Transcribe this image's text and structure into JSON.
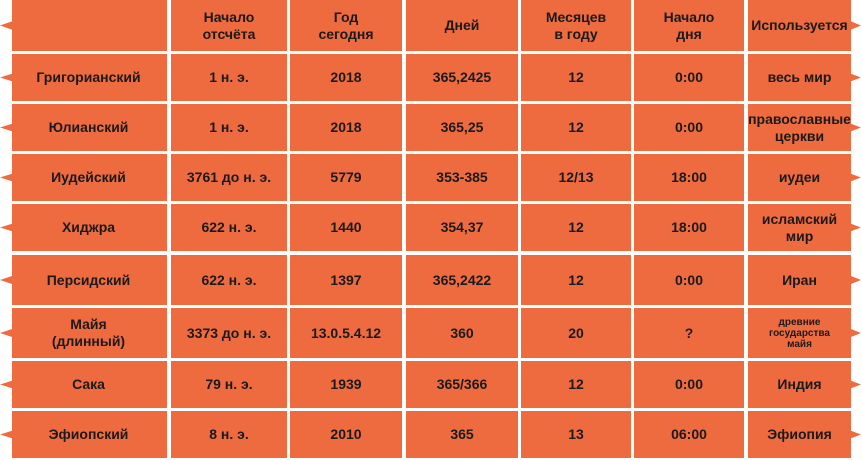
{
  "header": {
    "col0": "",
    "col1": "Начало\nотсчёта",
    "col2": "Год\nсегодня",
    "col3": "Дней",
    "col4": "Месяцев\nв году",
    "col5": "Начало\nдня",
    "col6": "Используется"
  },
  "rows": [
    {
      "name": "Григорианский",
      "start": "1 н. э.",
      "year": "2018",
      "days": "365,2425",
      "months": "12",
      "day_start": "0:00",
      "used": "весь мир"
    },
    {
      "name": "Юлианский",
      "start": "1 н. э.",
      "year": "2018",
      "days": "365,25",
      "months": "12",
      "day_start": "0:00",
      "used": "православные\nцеркви"
    },
    {
      "name": "Иудейский",
      "start": "3761 до н. э.",
      "year": "5779",
      "days": "353-385",
      "months": "12/13",
      "day_start": "18:00",
      "used": "иудеи"
    },
    {
      "name": "Хиджра",
      "start": "622 н. э.",
      "year": "1440",
      "days": "354,37",
      "months": "12",
      "day_start": "18:00",
      "used": "исламский\nмир"
    },
    {
      "name": "Персидский",
      "start": "622 н. э.",
      "year": "1397",
      "days": "365,2422",
      "months": "12",
      "day_start": "0:00",
      "used": "Иран"
    },
    {
      "name": "Майя\n(длинный)",
      "start": "3373 до н. э.",
      "year": "13.0.5.4.12",
      "days": "360",
      "months": "20",
      "day_start": "?",
      "used": "древние\nгосударства\nмайя"
    },
    {
      "name": "Сака",
      "start": "79 н. э.",
      "year": "1939",
      "days": "365/366",
      "months": "12",
      "day_start": "0:00",
      "used": "Индия"
    },
    {
      "name": "Эфиопский",
      "start": "8 н. э.",
      "year": "2010",
      "days": "365",
      "months": "13",
      "day_start": "06:00",
      "used": "Эфиопия"
    }
  ],
  "colors": {
    "cell_fill": "#ee6b3f",
    "text": "#1a1a1a",
    "background": "#ffffff"
  }
}
